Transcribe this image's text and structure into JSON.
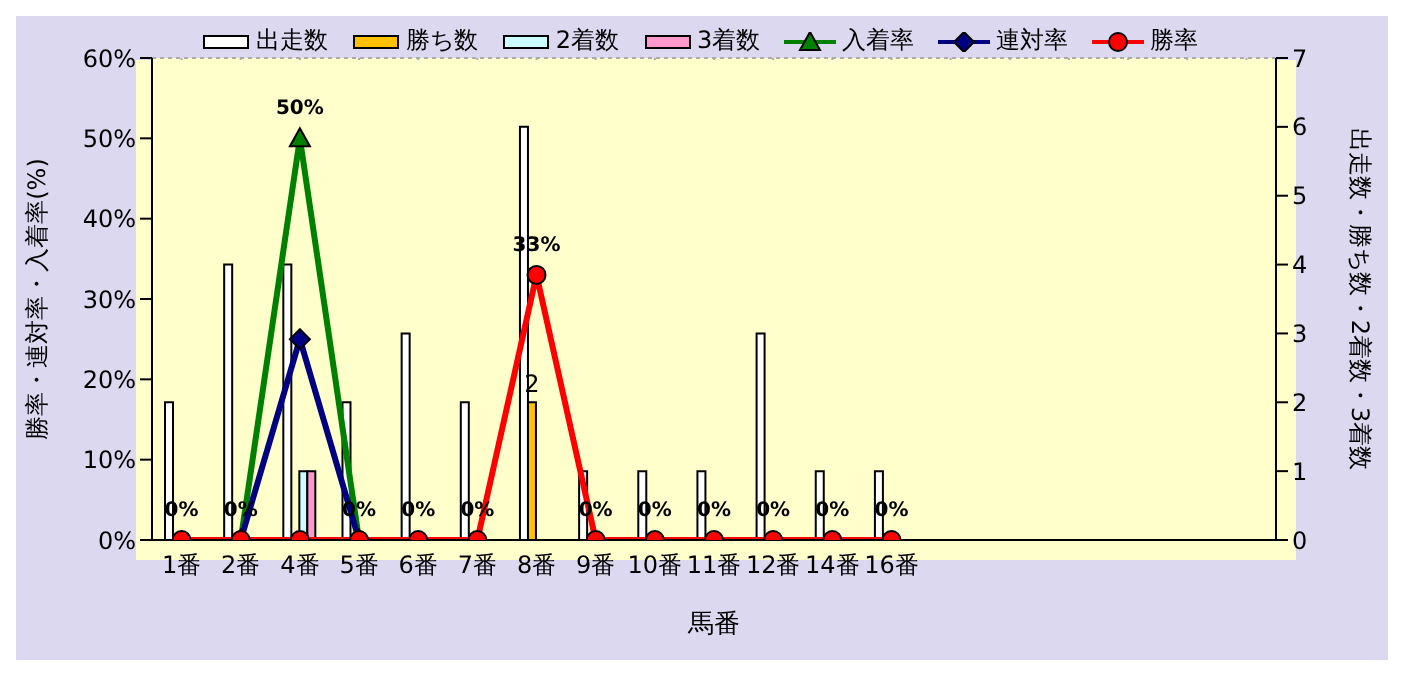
{
  "chart_data": {
    "type": "bar",
    "xlabel": "馬番",
    "ylabel": "勝率・連対率・入着率(%)",
    "y2label": "出走数・勝ち数・2着数・3着数",
    "annotations": [
      {
        "text": "0%",
        "x": "1番",
        "y": 0
      },
      {
        "text": "0%",
        "x": "2番",
        "y": 0
      },
      {
        "text": "50%",
        "x": "4番",
        "y": 50
      },
      {
        "text": "0%",
        "x": "5番",
        "y": 0
      },
      {
        "text": "0%",
        "x": "6番",
        "y": 0
      },
      {
        "text": "0%",
        "x": "7番",
        "y": 0
      },
      {
        "text": "33%",
        "x": "8番",
        "y": 33
      },
      {
        "text": "0%",
        "x": "9番",
        "y": 0
      },
      {
        "text": "0%",
        "x": "10番",
        "y": 0
      },
      {
        "text": "0%",
        "x": "11番",
        "y": 0
      },
      {
        "text": "0%",
        "x": "12番",
        "y": 0
      },
      {
        "text": "0%",
        "x": "14番",
        "y": 0
      },
      {
        "text": "0%",
        "x": "16番",
        "y": 0
      }
    ],
    "categories": [
      "1番",
      "2番",
      "4番",
      "5番",
      "6番",
      "7番",
      "8番",
      "9番",
      "10番",
      "11番",
      "12番",
      "14番",
      "16番",
      null,
      null,
      null,
      null,
      null,
      null
    ],
    "ylim": [
      0,
      60
    ],
    "yticks": [
      {
        "value": 0,
        "label": "0%"
      },
      {
        "value": 10,
        "label": "10%"
      },
      {
        "value": 20,
        "label": "20%"
      },
      {
        "value": 30,
        "label": "30%"
      },
      {
        "value": 40,
        "label": "40%"
      },
      {
        "value": 50,
        "label": "50%"
      },
      {
        "value": 60,
        "label": "60%"
      }
    ],
    "y2lim": [
      0,
      7
    ],
    "y2ticks": [
      0,
      1,
      2,
      3,
      4,
      5,
      6,
      7
    ],
    "grid": true,
    "legend": "top",
    "series": [
      {
        "name": "出走数",
        "axis": "y2",
        "color": "#ffffff",
        "values": [
          2,
          4,
          4,
          2,
          3,
          2,
          6,
          1,
          1,
          1,
          3,
          1,
          1,
          null,
          null,
          null,
          null,
          null,
          null
        ]
      },
      {
        "name": "勝ち数",
        "axis": "y2",
        "color": "#ffc000",
        "values": [
          0,
          0,
          0,
          0,
          0,
          0,
          2,
          0,
          0,
          0,
          0,
          0,
          0,
          null,
          null,
          null,
          null,
          null,
          null
        ],
        "value_labels": [
          null,
          null,
          null,
          null,
          null,
          null,
          "2",
          null,
          null,
          null,
          null,
          null,
          null,
          null,
          null,
          null,
          null,
          null,
          null
        ]
      },
      {
        "name": "2着数",
        "axis": "y2",
        "color": "#ccffff",
        "values": [
          0,
          0,
          1,
          0,
          0,
          0,
          0,
          0,
          0,
          0,
          0,
          0,
          0,
          null,
          null,
          null,
          null,
          null,
          null
        ]
      },
      {
        "name": "3着数",
        "axis": "y2",
        "color": "#ff99cc",
        "values": [
          0,
          0,
          1,
          0,
          0,
          0,
          0,
          0,
          0,
          0,
          0,
          0,
          0,
          null,
          null,
          null,
          null,
          null,
          null
        ]
      },
      {
        "name": "入着率",
        "type": "line",
        "color": "#008000",
        "marker": "triangle",
        "values": [
          null,
          0,
          50,
          0,
          null,
          null,
          null,
          null,
          null,
          null,
          null,
          null,
          null,
          null,
          null,
          null,
          null,
          null,
          null
        ]
      },
      {
        "name": "連対率",
        "type": "line",
        "color": "#000080",
        "marker": "diamond",
        "values": [
          null,
          0,
          25,
          0,
          null,
          null,
          null,
          null,
          null,
          null,
          null,
          null,
          null,
          null,
          null,
          null,
          null,
          null,
          null
        ]
      },
      {
        "name": "勝率",
        "type": "line",
        "color": "#ff0000",
        "marker": "circle",
        "values": [
          0,
          0,
          0,
          0,
          0,
          0,
          33,
          0,
          0,
          0,
          0,
          0,
          0,
          null,
          null,
          null,
          null,
          null,
          null
        ]
      }
    ]
  }
}
